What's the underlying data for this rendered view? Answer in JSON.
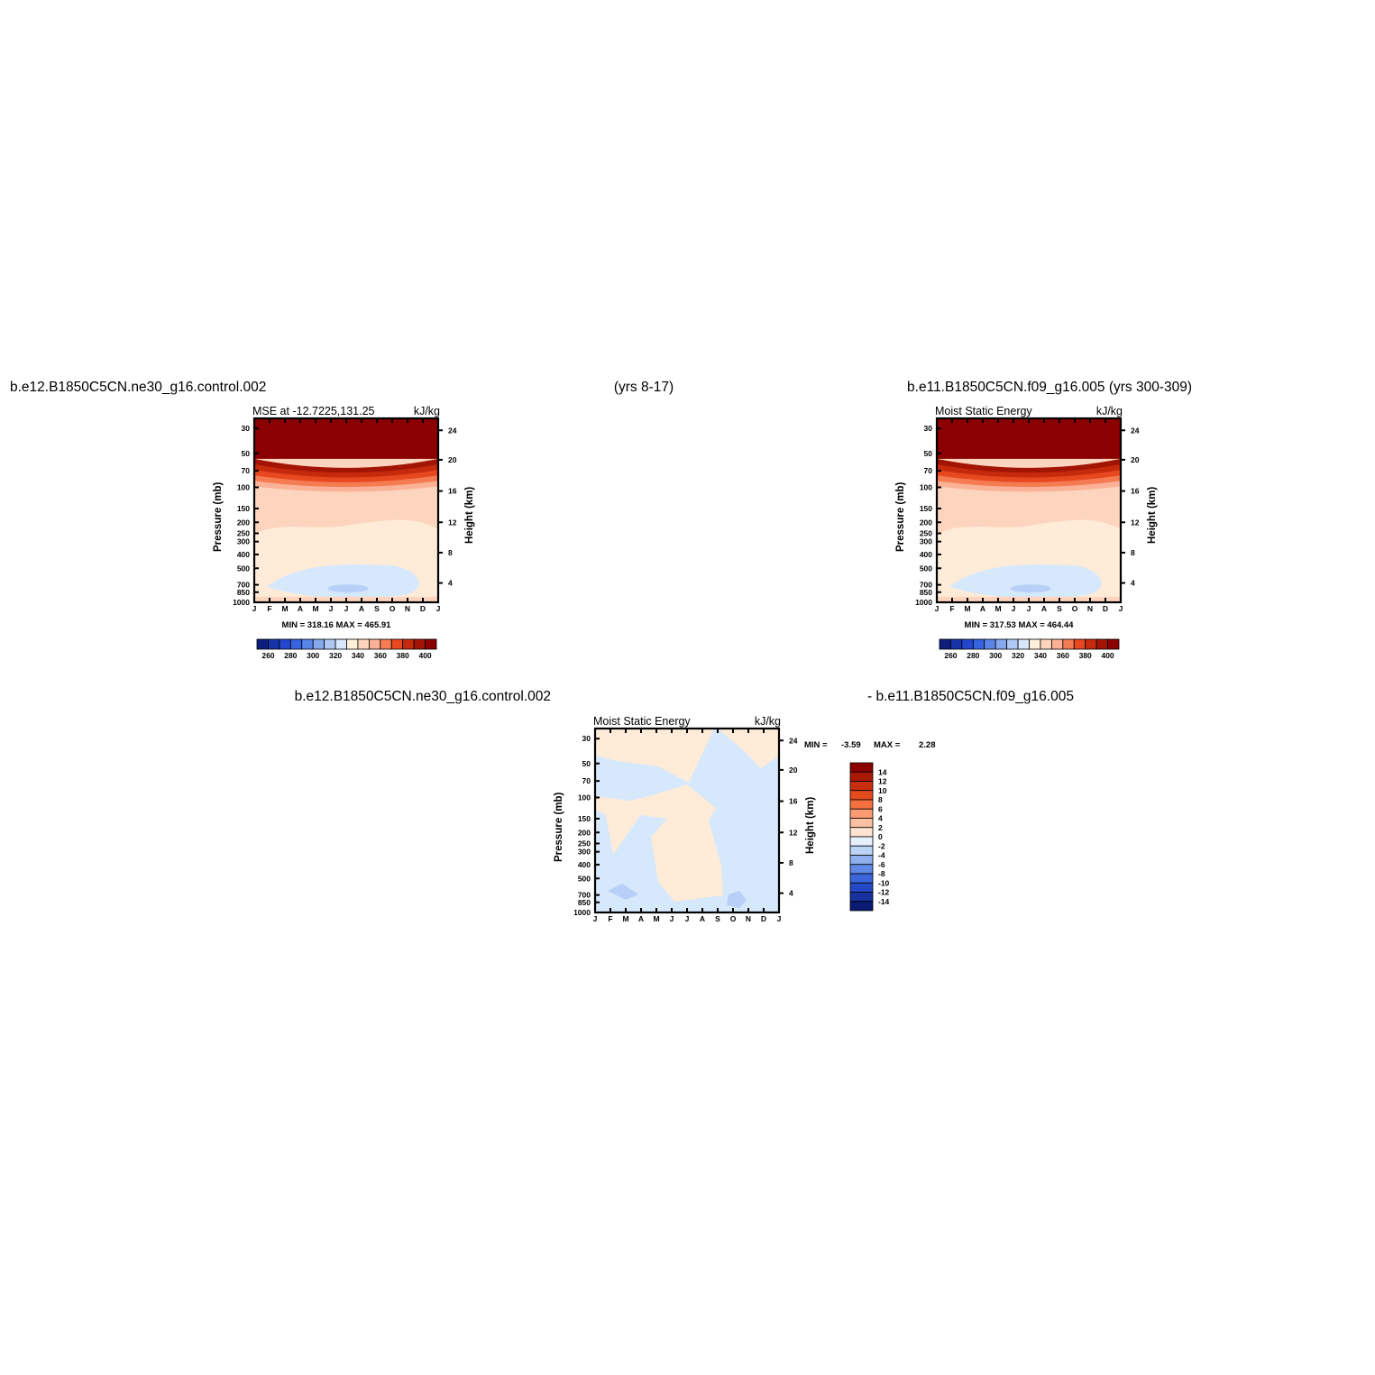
{
  "titles": {
    "left_case": "b.e12.B1850C5CN.ne30_g16.control.002",
    "center_years": "(yrs 8-17)",
    "right_case": "b.e11.B1850C5CN.f09_g16.005 (yrs 300-309)",
    "diff_left": "b.e12.B1850C5CN.ne30_g16.control.002",
    "diff_right": "- b.e11.B1850C5CN.f09_g16.005"
  },
  "chart_data": [
    {
      "id": "panel_a",
      "type": "heatmap",
      "subtitle_left": "MSE at -12.7225,131.25",
      "subtitle_right": "kJ/kg",
      "x": [
        "J",
        "F",
        "M",
        "A",
        "M",
        "J",
        "J",
        "A",
        "S",
        "O",
        "N",
        "D",
        "J"
      ],
      "ylabel": "Pressure (mb)",
      "yticks": [
        "30",
        "50",
        "70",
        "100",
        "150",
        "200",
        "250",
        "300",
        "400",
        "500",
        "700",
        "850",
        "1000"
      ],
      "ylabel_right": "Height (km)",
      "yticks_right": [
        "24",
        "20",
        "16",
        "12",
        "8",
        "4"
      ],
      "min_max_text": "MIN = 318.16  MAX = 465.91",
      "colorbar": {
        "orientation": "horizontal",
        "labels": [
          "260",
          "280",
          "300",
          "320",
          "340",
          "360",
          "380",
          "400"
        ],
        "colors": [
          "#0d1e7c",
          "#1733a8",
          "#2346cc",
          "#3763e0",
          "#5a85e8",
          "#86a8ee",
          "#b0c8f4",
          "#d9e7fa",
          "#fff0dc",
          "#fdd5be",
          "#fbb196",
          "#f57b52",
          "#e8481f",
          "#c62a0c",
          "#a21505",
          "#8b0000"
        ]
      },
      "fill_colors": {
        "top": "#8b0000",
        "upper": "#f88a62",
        "mid": "#fdd5be",
        "lower": "#feebd8",
        "low_negative": "#d6e8fc",
        "low_core": "#b8d0f8",
        "surface": "#fdd5be"
      }
    },
    {
      "id": "panel_b",
      "type": "heatmap",
      "subtitle_left": "Moist Static Energy",
      "subtitle_right": "kJ/kg",
      "x": [
        "J",
        "F",
        "M",
        "A",
        "M",
        "J",
        "J",
        "A",
        "S",
        "O",
        "N",
        "D",
        "J"
      ],
      "ylabel": "Pressure (mb)",
      "yticks": [
        "30",
        "50",
        "70",
        "100",
        "150",
        "200",
        "250",
        "300",
        "400",
        "500",
        "700",
        "850",
        "1000"
      ],
      "ylabel_right": "Height (km)",
      "yticks_right": [
        "24",
        "20",
        "16",
        "12",
        "8",
        "4"
      ],
      "min_max_text": "MIN = 317.53  MAX = 464.44",
      "colorbar": {
        "orientation": "horizontal",
        "labels": [
          "260",
          "280",
          "300",
          "320",
          "340",
          "360",
          "380",
          "400"
        ],
        "colors": [
          "#0d1e7c",
          "#1733a8",
          "#2346cc",
          "#3763e0",
          "#5a85e8",
          "#86a8ee",
          "#b0c8f4",
          "#d9e7fa",
          "#fff0dc",
          "#fdd5be",
          "#fbb196",
          "#f57b52",
          "#e8481f",
          "#c62a0c",
          "#a21505",
          "#8b0000"
        ]
      }
    },
    {
      "id": "panel_diff",
      "type": "heatmap",
      "subtitle_left": "Moist Static Energy",
      "subtitle_right": "kJ/kg",
      "x": [
        "J",
        "F",
        "M",
        "A",
        "M",
        "J",
        "J",
        "A",
        "S",
        "O",
        "N",
        "D",
        "J"
      ],
      "ylabel": "Pressure (mb)",
      "yticks": [
        "30",
        "50",
        "70",
        "100",
        "150",
        "200",
        "250",
        "300",
        "400",
        "500",
        "700",
        "850",
        "1000"
      ],
      "ylabel_right": "Height (km)",
      "yticks_right": [
        "24",
        "20",
        "16",
        "12",
        "8",
        "4"
      ],
      "min_label": "MIN =",
      "min_value": "-3.59",
      "max_label": "MAX =",
      "max_value": "2.28",
      "colorbar": {
        "orientation": "vertical",
        "labels": [
          "14",
          "12",
          "10",
          "8",
          "6",
          "4",
          "2",
          "0",
          "-2",
          "-4",
          "-6",
          "-8",
          "-10",
          "-12",
          "-14"
        ],
        "colors": [
          "#8b0000",
          "#a81a06",
          "#c82e0c",
          "#e54a1c",
          "#f4703e",
          "#fa9a74",
          "#fcc0a2",
          "#fee4d0",
          "#e6f0fc",
          "#bcd3f6",
          "#8eb0ee",
          "#5f89e6",
          "#3a66da",
          "#2549c6",
          "#17319e",
          "#0b1a72"
        ]
      },
      "fill_colors": {
        "positive": "#feebd8",
        "negative": "#d6e8fc",
        "negative_core": "#b8d0f8"
      }
    }
  ]
}
